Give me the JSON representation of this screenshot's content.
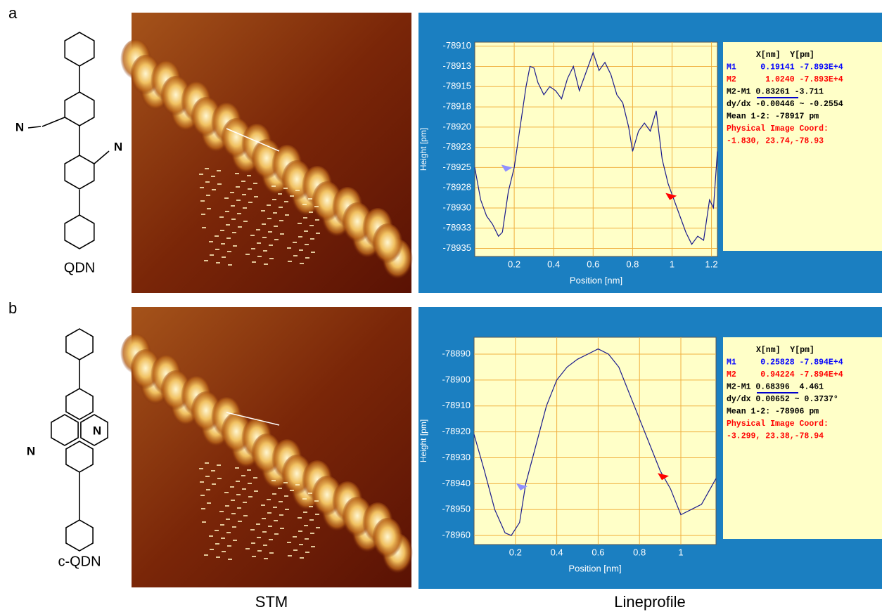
{
  "panel_labels": [
    "a",
    "b"
  ],
  "molecules": [
    "QDN",
    "c-QDN"
  ],
  "structures": [
    {
      "atoms": [
        "N",
        "N"
      ]
    },
    {
      "atoms": [
        "N",
        "N"
      ]
    }
  ],
  "captions": [
    "STM",
    "Lineprofile"
  ],
  "readouts": [
    [
      {
        "text": "X[nm]  Y[pm]",
        "color": "#000000"
      },
      {
        "text": "M1     0.19141 -7.893E+4",
        "color": "#0000ff"
      },
      {
        "text": "M2      1.0240 -7.893E+4",
        "color": "#ff0000"
      },
      {
        "text": "M2-M1 0.83261 -3.711",
        "color": "#000000"
      },
      {
        "text": "dy/dx -0.00446 ~ -0.2554",
        "color": "#000000"
      },
      {
        "text": "Mean 1-2: -78917 pm",
        "color": "#000000"
      },
      {
        "text": "Physical Image Coord:",
        "color": "#ff0000"
      },
      {
        "text": "-1.830, 23.74,-78.93",
        "color": "#ff0000"
      }
    ],
    [
      {
        "text": "X[nm]  Y[pm]",
        "color": "#000000"
      },
      {
        "text": "M1     0.25828 -7.894E+4",
        "color": "#0000ff"
      },
      {
        "text": "M2     0.94224 -7.894E+4",
        "color": "#ff0000"
      },
      {
        "text": "M2-M1 0.68396  4.461",
        "color": "#000000"
      },
      {
        "text": "dy/dx 0.00652 ~ 0.3737°",
        "color": "#000000"
      },
      {
        "text": "Mean 1-2: -78906 pm",
        "color": "#000000"
      },
      {
        "text": "Physical Image Coord:",
        "color": "#ff0000"
      },
      {
        "text": "-3.299, 23.38,-78.94",
        "color": "#ff0000"
      }
    ]
  ],
  "chart_data": [
    {
      "type": "line",
      "xlabel": "Position [nm]",
      "ylabel": "Height [pm]",
      "color": "#1a1a8c",
      "grid": true,
      "x": [
        0,
        0.03,
        0.06,
        0.09,
        0.12,
        0.14,
        0.17,
        0.2,
        0.23,
        0.26,
        0.28,
        0.3,
        0.32,
        0.35,
        0.38,
        0.41,
        0.44,
        0.47,
        0.5,
        0.53,
        0.56,
        0.6,
        0.63,
        0.66,
        0.69,
        0.72,
        0.75,
        0.78,
        0.8,
        0.83,
        0.86,
        0.89,
        0.92,
        0.95,
        0.98,
        1.01,
        1.04,
        1.07,
        1.1,
        1.13,
        1.16,
        1.19,
        1.21,
        1.23
      ],
      "values": [
        -78925,
        -78929,
        -78931,
        -78932,
        -78933.5,
        -78933,
        -78928,
        -78925,
        -78920,
        -78915,
        -78912.5,
        -78912.7,
        -78914.5,
        -78916,
        -78915,
        -78915.5,
        -78916.5,
        -78914,
        -78912.5,
        -78915.5,
        -78913.5,
        -78910.8,
        -78913,
        -78912,
        -78913.5,
        -78916,
        -78917,
        -78920,
        -78923,
        -78920.5,
        -78919.5,
        -78920.5,
        -78918,
        -78924,
        -78927,
        -78929,
        -78931,
        -78933,
        -78934.5,
        -78933.5,
        -78934,
        -78929,
        -78930,
        -78923
      ],
      "xlim": [
        0,
        1.23
      ],
      "xticks": [
        0.2,
        0.4,
        0.6,
        0.8,
        1,
        1.2
      ],
      "ylim": [
        -78936,
        -78909.5
      ],
      "yticks": [
        -78910,
        {
          "value": -78912.5,
          "label": "-78913"
        },
        -78915,
        {
          "value": -78917.5,
          "label": "-78918"
        },
        -78920,
        {
          "value": -78922.5,
          "label": "-78923"
        },
        -78925,
        {
          "value": -78927.5,
          "label": "-78928"
        },
        -78930,
        {
          "value": -78932.5,
          "label": "-78933"
        },
        -78935
      ],
      "markers": [
        {
          "x": 0.19141,
          "y": -78925,
          "color": "#9090ff"
        },
        {
          "x": 1.024,
          "y": -78928.5,
          "color": "#ff0000"
        }
      ]
    },
    {
      "type": "line",
      "xlabel": "Position [nm]",
      "ylabel": "Height [pm]",
      "color": "#1a1a8c",
      "grid": true,
      "x": [
        0,
        0.05,
        0.1,
        0.15,
        0.18,
        0.22,
        0.25,
        0.3,
        0.35,
        0.4,
        0.45,
        0.5,
        0.55,
        0.6,
        0.65,
        0.7,
        0.75,
        0.8,
        0.85,
        0.9,
        0.95,
        1.0,
        1.05,
        1.1,
        1.17
      ],
      "values": [
        -78921,
        -78935,
        -78950,
        -78959,
        -78960,
        -78955,
        -78940,
        -78925,
        -78910,
        -78900,
        -78895,
        -78892,
        -78890,
        -78888,
        -78890,
        -78895,
        -78905,
        -78915,
        -78925,
        -78935,
        -78942,
        -78952,
        -78950,
        -78948,
        -78938
      ],
      "xlim": [
        0,
        1.17
      ],
      "xticks": [
        0.2,
        0.4,
        0.6,
        0.8,
        1
      ],
      "ylim": [
        -78963.5,
        -78883.5
      ],
      "yticks": [
        -78890,
        -78900,
        -78910,
        -78920,
        -78930,
        -78940,
        -78950,
        -78960
      ],
      "markers": [
        {
          "x": 0.25828,
          "y": -78941,
          "color": "#9090ff"
        },
        {
          "x": 0.94224,
          "y": -78937,
          "color": "#ff0000"
        }
      ]
    }
  ]
}
